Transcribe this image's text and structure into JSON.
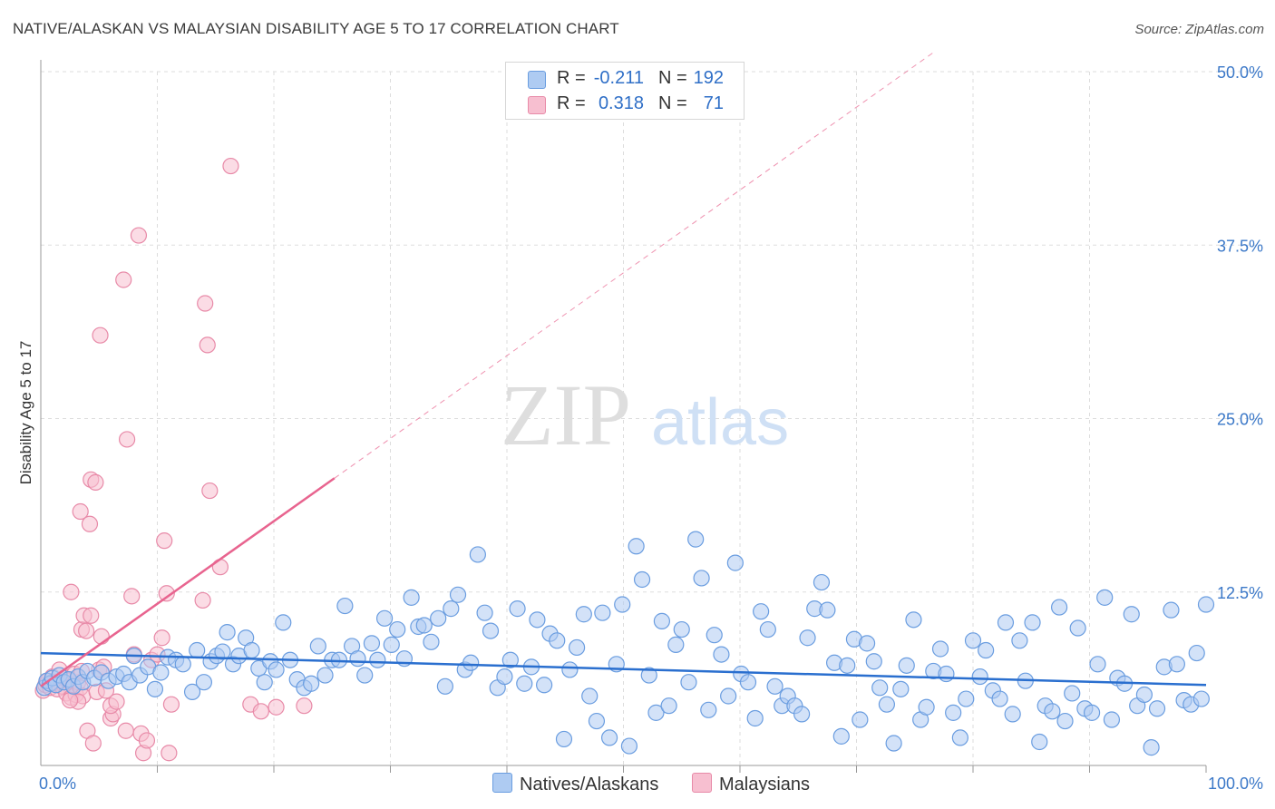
{
  "title": "NATIVE/ALASKAN VS MALAYSIAN DISABILITY AGE 5 TO 17 CORRELATION CHART",
  "source": "Source: ZipAtlas.com",
  "watermark": {
    "zip": "ZIP",
    "atlas": "atlas"
  },
  "colors": {
    "blue_fill": "#aecbf2",
    "blue_stroke": "#6a9de0",
    "blue_line": "#2a6fcf",
    "pink_fill": "#f7bfd0",
    "pink_stroke": "#e88aa8",
    "pink_line": "#e8648f",
    "grid": "#dddddd",
    "axis_label": "#3b78c8"
  },
  "legend": {
    "rows": [
      {
        "r_label": "R =",
        "r_value": "-0.211",
        "n_label": "N =",
        "n_value": "192"
      },
      {
        "r_label": "R =",
        "r_value": "0.318",
        "n_label": "N =",
        "n_value": "71"
      }
    ]
  },
  "bottom_legend": {
    "blue": "Natives/Alaskans",
    "pink": "Malaysians"
  },
  "chart_data": {
    "type": "scatter",
    "title": "NATIVE/ALASKAN VS MALAYSIAN DISABILITY AGE 5 TO 17 CORRELATION CHART",
    "xlabel": "",
    "ylabel": "Disability Age 5 to 17",
    "xlim": [
      0,
      100
    ],
    "ylim": [
      0,
      50
    ],
    "x_tick_labels": [
      "0.0%",
      "100.0%"
    ],
    "y_ticks": [
      12.5,
      25.0,
      37.5,
      50.0
    ],
    "y_tick_labels": [
      "12.5%",
      "25.0%",
      "37.5%",
      "50.0%"
    ],
    "grid": true,
    "legend_position": "top-center",
    "series": [
      {
        "name": "Natives/Alaskans",
        "r": -0.211,
        "n": 192,
        "trend": {
          "x": [
            0,
            100
          ],
          "y": [
            8.1,
            5.8
          ],
          "style": "solid"
        },
        "points": [
          [
            0.3,
            5.6
          ],
          [
            0.5,
            6.1
          ],
          [
            0.8,
            5.9
          ],
          [
            1.0,
            6.3
          ],
          [
            1.3,
            5.8
          ],
          [
            1.6,
            6.5
          ],
          [
            2.0,
            6.0
          ],
          [
            2.4,
            6.2
          ],
          [
            2.8,
            5.7
          ],
          [
            3.2,
            6.4
          ],
          [
            3.6,
            6.0
          ],
          [
            4.0,
            6.8
          ],
          [
            4.6,
            6.3
          ],
          [
            5.2,
            6.7
          ],
          [
            5.8,
            6.1
          ],
          [
            6.5,
            6.4
          ],
          [
            7.1,
            6.6
          ],
          [
            7.6,
            6.0
          ],
          [
            8.0,
            7.9
          ],
          [
            8.5,
            6.5
          ],
          [
            9.2,
            7.1
          ],
          [
            9.8,
            5.5
          ],
          [
            10.3,
            6.7
          ],
          [
            10.9,
            7.8
          ],
          [
            11.6,
            7.6
          ],
          [
            12.2,
            7.3
          ],
          [
            13.0,
            5.3
          ],
          [
            13.4,
            8.3
          ],
          [
            14.0,
            6.0
          ],
          [
            14.6,
            7.5
          ],
          [
            15.1,
            7.9
          ],
          [
            15.6,
            8.2
          ],
          [
            16.0,
            9.6
          ],
          [
            16.5,
            7.3
          ],
          [
            17.0,
            7.9
          ],
          [
            17.6,
            9.2
          ],
          [
            18.1,
            8.3
          ],
          [
            18.7,
            7.0
          ],
          [
            19.2,
            6.0
          ],
          [
            19.7,
            7.5
          ],
          [
            20.2,
            6.9
          ],
          [
            20.8,
            10.3
          ],
          [
            21.4,
            7.6
          ],
          [
            22.0,
            6.2
          ],
          [
            22.6,
            5.6
          ],
          [
            23.2,
            5.9
          ],
          [
            23.8,
            8.6
          ],
          [
            24.4,
            6.5
          ],
          [
            25.0,
            7.6
          ],
          [
            25.6,
            7.6
          ],
          [
            26.1,
            11.5
          ],
          [
            26.7,
            8.6
          ],
          [
            27.2,
            7.7
          ],
          [
            27.8,
            6.5
          ],
          [
            28.4,
            8.8
          ],
          [
            28.9,
            7.6
          ],
          [
            29.5,
            10.6
          ],
          [
            30.1,
            8.7
          ],
          [
            30.6,
            9.8
          ],
          [
            31.2,
            7.7
          ],
          [
            31.8,
            12.1
          ],
          [
            32.4,
            10.0
          ],
          [
            32.9,
            10.1
          ],
          [
            33.5,
            8.9
          ],
          [
            34.1,
            10.6
          ],
          [
            34.7,
            5.7
          ],
          [
            35.2,
            11.3
          ],
          [
            35.8,
            12.3
          ],
          [
            36.4,
            6.9
          ],
          [
            36.9,
            7.4
          ],
          [
            37.5,
            15.2
          ],
          [
            38.1,
            11.0
          ],
          [
            38.6,
            9.7
          ],
          [
            39.2,
            5.6
          ],
          [
            39.8,
            6.4
          ],
          [
            40.3,
            7.6
          ],
          [
            40.9,
            11.3
          ],
          [
            41.5,
            5.9
          ],
          [
            42.1,
            7.1
          ],
          [
            42.6,
            10.5
          ],
          [
            43.2,
            5.8
          ],
          [
            43.7,
            9.5
          ],
          [
            44.3,
            9.0
          ],
          [
            44.9,
            1.9
          ],
          [
            45.4,
            6.9
          ],
          [
            46.0,
            8.5
          ],
          [
            46.6,
            10.9
          ],
          [
            47.1,
            5.0
          ],
          [
            47.7,
            3.2
          ],
          [
            48.2,
            11.0
          ],
          [
            48.8,
            2.0
          ],
          [
            49.4,
            7.3
          ],
          [
            49.9,
            11.6
          ],
          [
            50.5,
            1.4
          ],
          [
            51.1,
            15.8
          ],
          [
            51.6,
            13.4
          ],
          [
            52.2,
            6.5
          ],
          [
            52.8,
            3.8
          ],
          [
            53.3,
            10.4
          ],
          [
            53.9,
            4.3
          ],
          [
            54.5,
            8.7
          ],
          [
            55.0,
            9.8
          ],
          [
            55.6,
            6.0
          ],
          [
            56.2,
            16.3
          ],
          [
            56.7,
            13.5
          ],
          [
            57.3,
            4.0
          ],
          [
            57.8,
            9.4
          ],
          [
            58.4,
            8.0
          ],
          [
            59.0,
            5.0
          ],
          [
            59.6,
            14.6
          ],
          [
            60.1,
            6.6
          ],
          [
            60.7,
            6.0
          ],
          [
            61.3,
            3.4
          ],
          [
            61.8,
            11.1
          ],
          [
            62.4,
            9.8
          ],
          [
            63.0,
            5.7
          ],
          [
            63.6,
            4.3
          ],
          [
            64.1,
            5.0
          ],
          [
            64.7,
            4.3
          ],
          [
            65.3,
            3.7
          ],
          [
            65.8,
            9.2
          ],
          [
            66.4,
            11.3
          ],
          [
            67.0,
            13.2
          ],
          [
            67.5,
            11.2
          ],
          [
            68.1,
            7.4
          ],
          [
            68.7,
            2.1
          ],
          [
            69.2,
            7.2
          ],
          [
            69.8,
            9.1
          ],
          [
            70.3,
            3.3
          ],
          [
            70.9,
            8.8
          ],
          [
            71.5,
            7.5
          ],
          [
            72.0,
            5.6
          ],
          [
            72.6,
            4.4
          ],
          [
            73.2,
            1.6
          ],
          [
            73.8,
            5.5
          ],
          [
            74.3,
            7.2
          ],
          [
            74.9,
            10.5
          ],
          [
            75.5,
            3.3
          ],
          [
            76.0,
            4.2
          ],
          [
            76.6,
            6.8
          ],
          [
            77.2,
            8.4
          ],
          [
            77.7,
            6.6
          ],
          [
            78.3,
            3.8
          ],
          [
            78.9,
            2.0
          ],
          [
            79.4,
            4.8
          ],
          [
            80.0,
            9.0
          ],
          [
            80.6,
            6.4
          ],
          [
            81.1,
            8.3
          ],
          [
            81.7,
            5.4
          ],
          [
            82.3,
            4.8
          ],
          [
            82.8,
            10.3
          ],
          [
            83.4,
            3.7
          ],
          [
            84.0,
            9.0
          ],
          [
            84.5,
            6.1
          ],
          [
            85.1,
            10.3
          ],
          [
            85.7,
            1.7
          ],
          [
            86.2,
            4.3
          ],
          [
            86.8,
            3.9
          ],
          [
            87.4,
            11.4
          ],
          [
            87.9,
            3.2
          ],
          [
            88.5,
            5.2
          ],
          [
            89.0,
            9.9
          ],
          [
            89.6,
            4.1
          ],
          [
            90.2,
            3.8
          ],
          [
            90.7,
            7.3
          ],
          [
            91.3,
            12.1
          ],
          [
            91.9,
            3.3
          ],
          [
            92.4,
            6.3
          ],
          [
            93.0,
            5.9
          ],
          [
            93.6,
            10.9
          ],
          [
            94.1,
            4.3
          ],
          [
            94.7,
            5.1
          ],
          [
            95.3,
            1.3
          ],
          [
            95.8,
            4.1
          ],
          [
            96.4,
            7.1
          ],
          [
            97.0,
            11.2
          ],
          [
            97.5,
            7.3
          ],
          [
            98.1,
            4.7
          ],
          [
            98.7,
            4.4
          ],
          [
            99.2,
            8.1
          ],
          [
            99.6,
            4.8
          ],
          [
            100,
            11.6
          ]
        ]
      },
      {
        "name": "Malaysians",
        "r": 0.318,
        "n": 71,
        "trend": {
          "x": [
            0,
            25.2
          ],
          "y": [
            5.7,
            20.7
          ],
          "style": "solid",
          "extended": {
            "x": [
              25.2,
              76.8
            ],
            "y": [
              20.7,
              51.5
            ],
            "style": "dashed"
          }
        },
        "points": [
          [
            0.2,
            5.4
          ],
          [
            0.4,
            5.8
          ],
          [
            0.6,
            6.1
          ],
          [
            0.8,
            5.6
          ],
          [
            1.0,
            6.4
          ],
          [
            1.2,
            5.9
          ],
          [
            1.4,
            5.5
          ],
          [
            1.6,
            6.0
          ],
          [
            1.8,
            5.7
          ],
          [
            2.0,
            6.3
          ],
          [
            2.2,
            5.2
          ],
          [
            2.4,
            6.1
          ],
          [
            2.6,
            4.9
          ],
          [
            2.8,
            5.8
          ],
          [
            3.0,
            5.1
          ],
          [
            3.2,
            6.0
          ],
          [
            3.4,
            5.6
          ],
          [
            3.6,
            5.0
          ],
          [
            3.2,
            4.6
          ],
          [
            2.5,
            4.7
          ],
          [
            1.6,
            6.9
          ],
          [
            2.9,
            6.6
          ],
          [
            3.5,
            6.8
          ],
          [
            2.6,
            12.5
          ],
          [
            3.5,
            9.8
          ],
          [
            3.7,
            10.8
          ],
          [
            3.9,
            9.7
          ],
          [
            3.4,
            18.3
          ],
          [
            4.2,
            17.4
          ],
          [
            4.3,
            20.6
          ],
          [
            4.7,
            20.4
          ],
          [
            4.0,
            2.5
          ],
          [
            4.5,
            1.6
          ],
          [
            4.8,
            5.3
          ],
          [
            5.0,
            6.9
          ],
          [
            5.2,
            9.3
          ],
          [
            5.4,
            7.1
          ],
          [
            5.6,
            5.4
          ],
          [
            6.0,
            3.4
          ],
          [
            6.2,
            3.7
          ],
          [
            6.0,
            4.3
          ],
          [
            6.5,
            4.6
          ],
          [
            7.1,
            35.0
          ],
          [
            7.3,
            2.5
          ],
          [
            5.1,
            31.0
          ],
          [
            7.4,
            23.5
          ],
          [
            7.8,
            12.2
          ],
          [
            8.0,
            8.0
          ],
          [
            8.4,
            38.2
          ],
          [
            8.6,
            2.3
          ],
          [
            8.8,
            0.9
          ],
          [
            9.1,
            1.8
          ],
          [
            9.5,
            7.6
          ],
          [
            10.0,
            8.0
          ],
          [
            10.4,
            9.2
          ],
          [
            10.6,
            16.2
          ],
          [
            10.8,
            12.4
          ],
          [
            11.0,
            0.9
          ],
          [
            11.2,
            4.4
          ],
          [
            13.9,
            11.9
          ],
          [
            14.1,
            33.3
          ],
          [
            14.3,
            30.3
          ],
          [
            14.5,
            19.8
          ],
          [
            15.4,
            14.3
          ],
          [
            16.3,
            43.2
          ],
          [
            18.0,
            4.4
          ],
          [
            18.9,
            3.9
          ],
          [
            20.2,
            4.2
          ],
          [
            22.6,
            4.3
          ],
          [
            4.3,
            10.8
          ],
          [
            1.0,
            6.0
          ]
        ]
      }
    ]
  }
}
